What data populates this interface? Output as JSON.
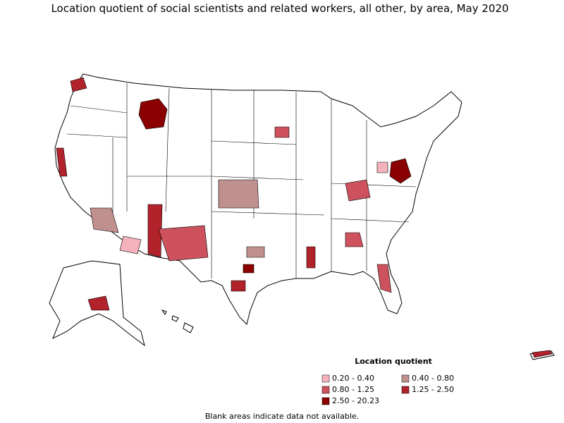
{
  "title": "Location quotient of social scientists and related workers, all other, by area, May 2020",
  "legend": {
    "title": "Location quotient",
    "items": [
      {
        "label": "0.20 - 0.40",
        "color": "#f4b3bc"
      },
      {
        "label": "0.40 - 0.80",
        "color": "#c0908f"
      },
      {
        "label": "0.80 - 1.25",
        "color": "#cd525e"
      },
      {
        "label": "1.25 - 2.50",
        "color": "#b2222b"
      },
      {
        "label": "2.50 - 20.23",
        "color": "#8b0000"
      }
    ]
  },
  "note": "Blank areas indicate data not available."
}
